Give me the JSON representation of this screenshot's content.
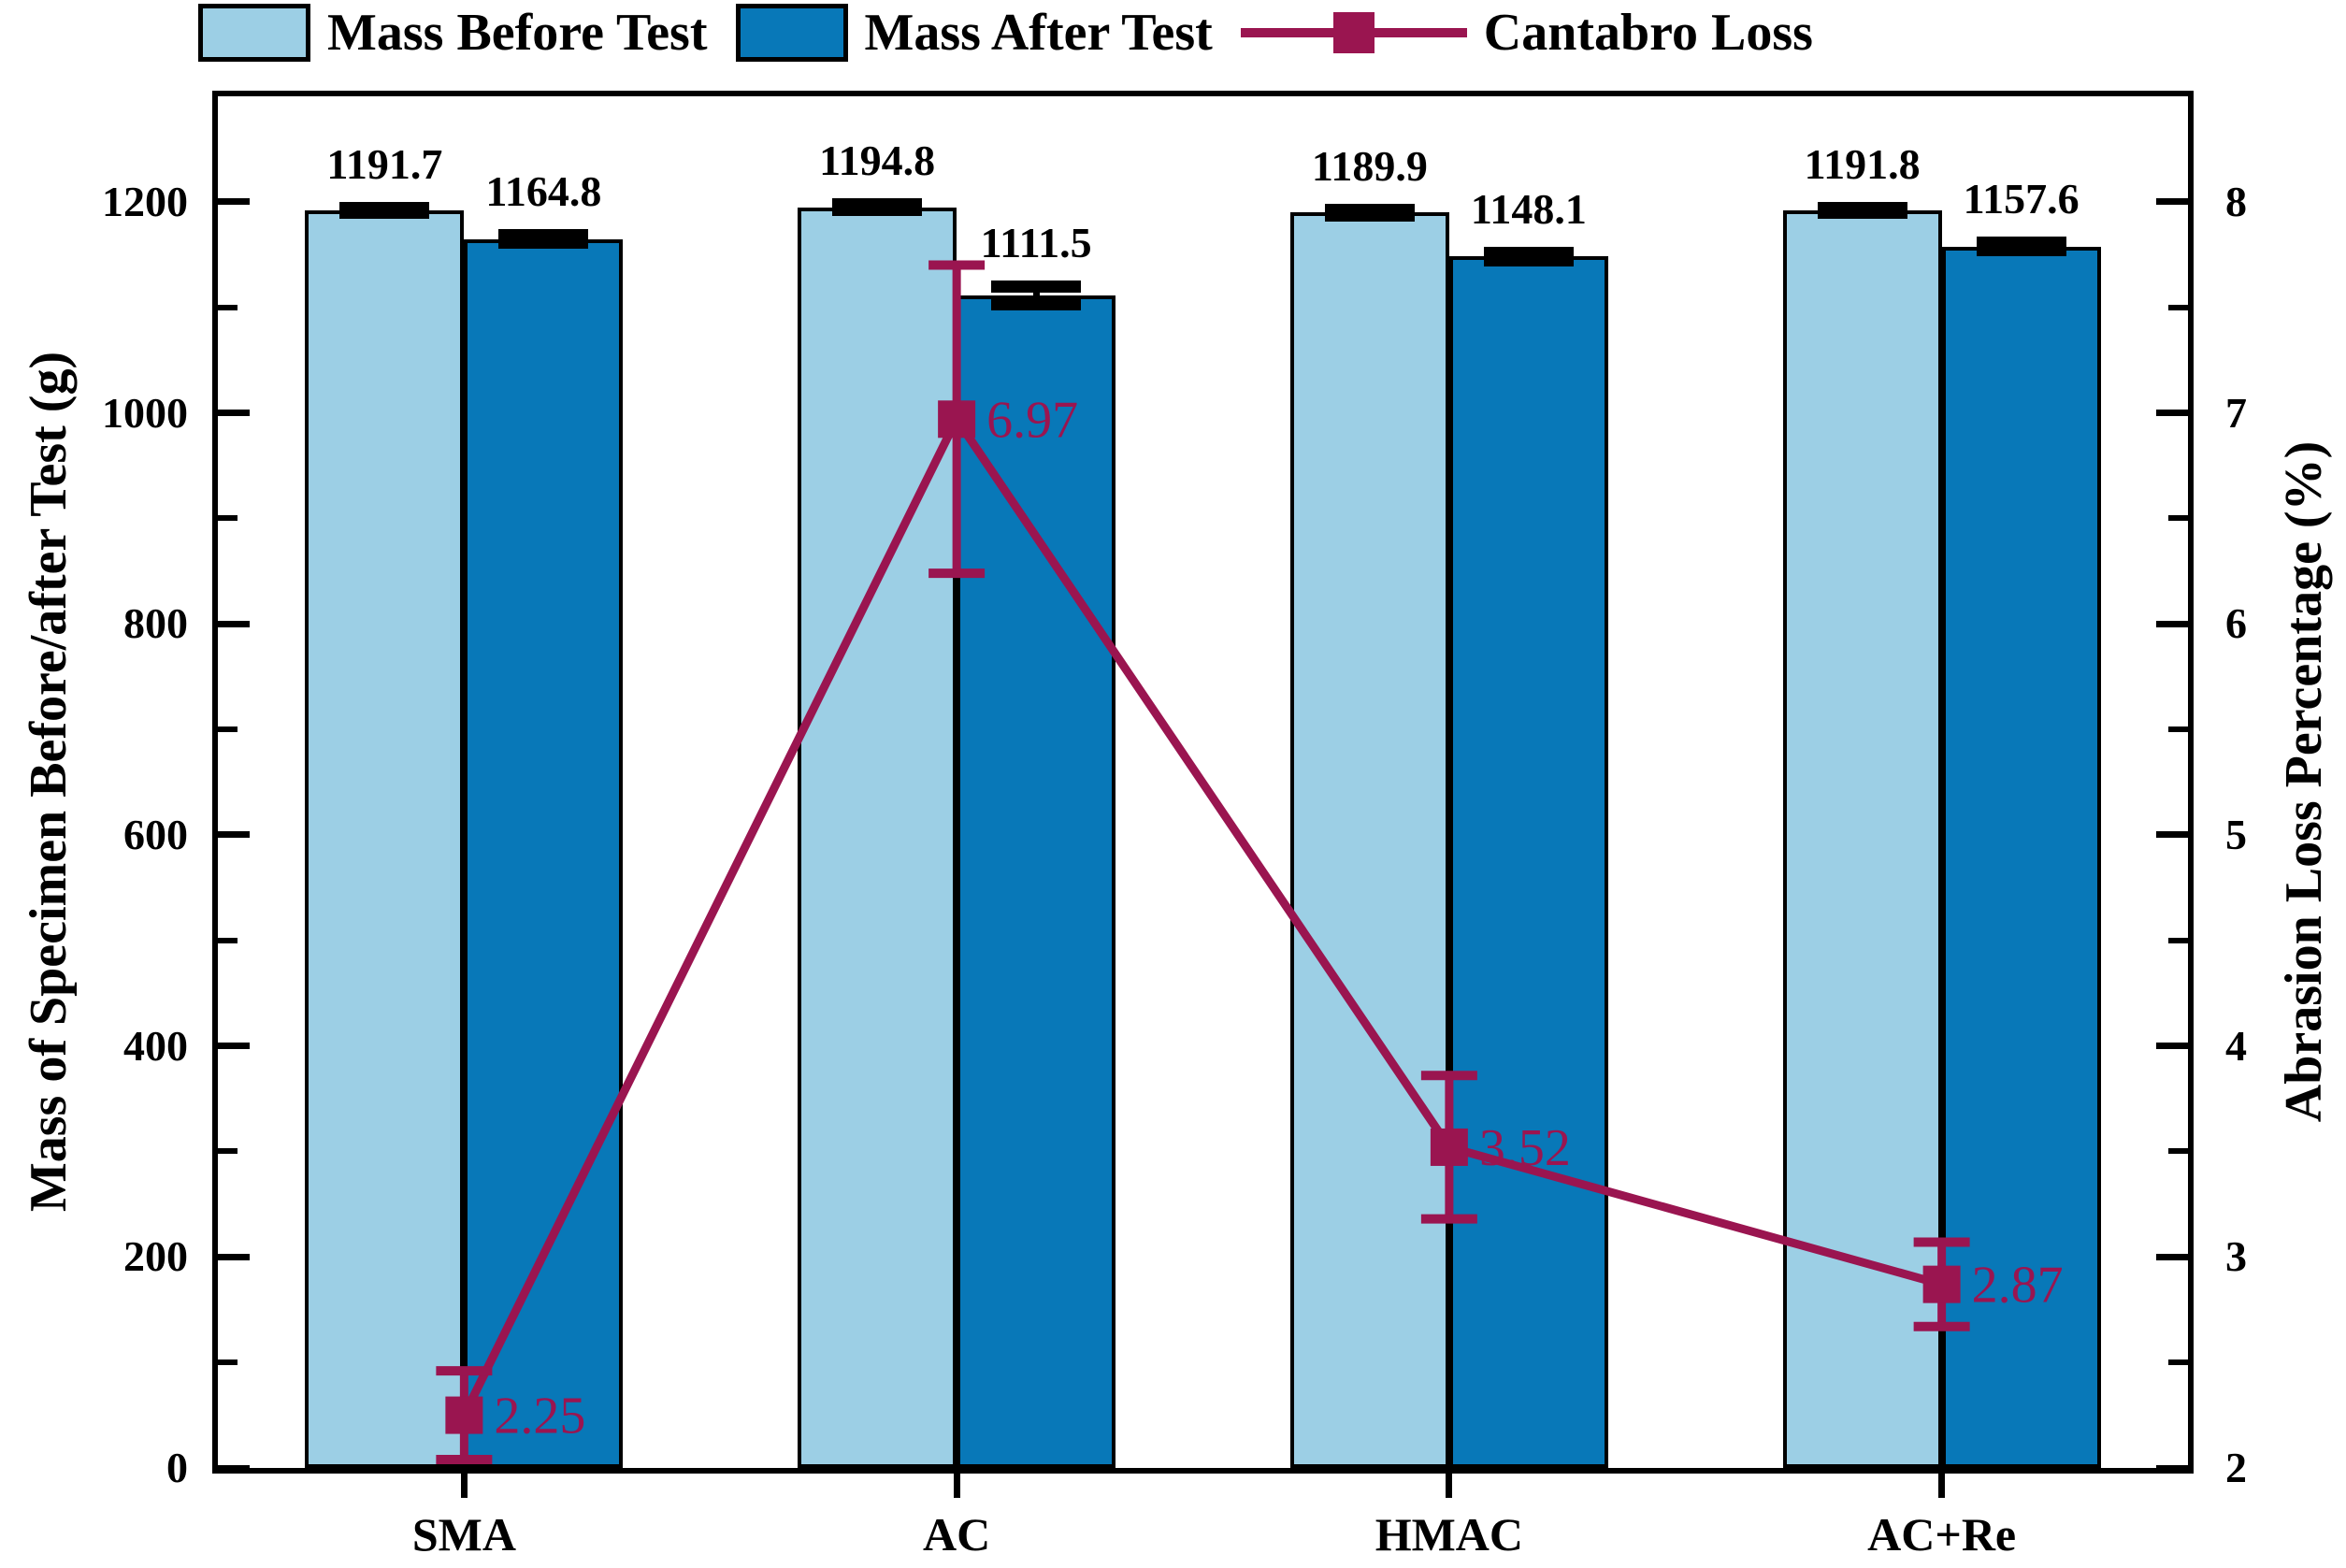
{
  "chart_data": {
    "type": "bar+line",
    "categories": [
      "SMA",
      "AC",
      "HMAC",
      "AC+Re"
    ],
    "series": [
      {
        "name": "Mass Before Test",
        "type": "bar",
        "axis": "left",
        "color": "#9CCFE5",
        "values": [
          1191.7,
          1194.8,
          1189.9,
          1191.8
        ],
        "labels": [
          "1191.7",
          "1194.8",
          "1189.9",
          "1191.8"
        ],
        "errors": [
          2,
          2,
          2,
          2
        ]
      },
      {
        "name": "Mass After Test",
        "type": "bar",
        "axis": "left",
        "color": "#0878B8",
        "values": [
          1164.8,
          1111.5,
          1148.1,
          1157.6
        ],
        "labels": [
          "1164.8",
          "1111.5",
          "1148.1",
          "1157.6"
        ],
        "errors": [
          3,
          8,
          3,
          3
        ]
      },
      {
        "name": "Cantabro Loss",
        "type": "line",
        "axis": "right",
        "color": "#9A1550",
        "values": [
          2.25,
          6.97,
          3.52,
          2.87
        ],
        "labels": [
          "2.25",
          "6.97",
          "3.52",
          "2.87"
        ],
        "errors": [
          0.21,
          0.73,
          0.34,
          0.2
        ]
      }
    ],
    "left_axis": {
      "label": "Mass of Specimen Before/after Test (g)",
      "min": 0,
      "max": 1300,
      "major_ticks": [
        0,
        200,
        400,
        600,
        800,
        1000,
        1200
      ],
      "minor_step": 100
    },
    "right_axis": {
      "label": "Abrasion Loss Percentage (%)",
      "min": 2,
      "max": 8.5,
      "major_ticks": [
        2,
        3,
        4,
        5,
        6,
        7,
        8
      ],
      "minor_step": 0.5
    },
    "x_axis": {
      "tick_labels": [
        "SMA",
        "AC",
        "HMAC",
        "AC+Re"
      ]
    },
    "legend_position": "top",
    "grid": false,
    "colors": {
      "mass_before": "#9CCFE5",
      "mass_after": "#0878B8",
      "cantabro": "#9A1550",
      "axis": "#000000"
    }
  }
}
